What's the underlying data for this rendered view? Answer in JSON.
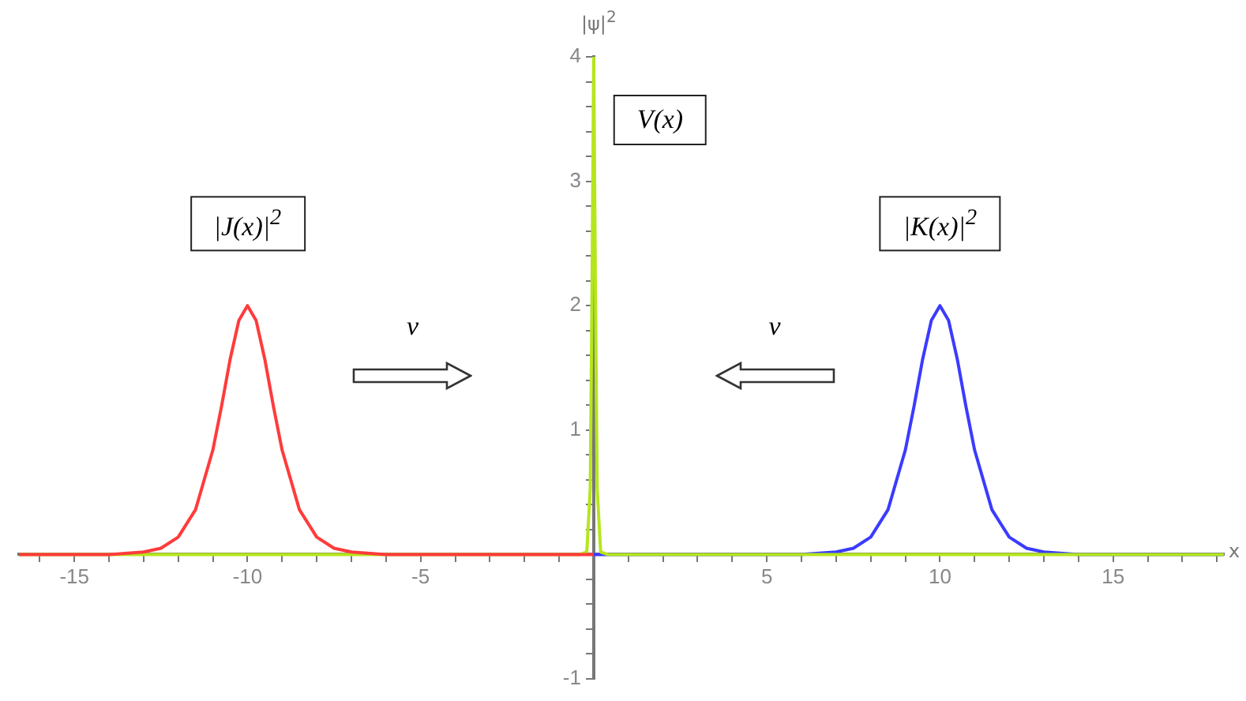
{
  "chart_data": {
    "type": "line",
    "xlabel": "x",
    "ylabel": "|ψ|$^{2}$",
    "xlim": [
      -16.6,
      18.2
    ],
    "ylim": [
      -1,
      4
    ],
    "xticks": [
      {
        "value": -16,
        "label": null
      },
      -15,
      {
        "value": -14,
        "label": null
      },
      {
        "value": -13,
        "label": null
      },
      {
        "value": -12,
        "label": null
      },
      {
        "value": -11,
        "label": null
      },
      -10,
      {
        "value": -9,
        "label": null
      },
      {
        "value": -8,
        "label": null
      },
      {
        "value": -7,
        "label": null
      },
      {
        "value": -6,
        "label": null
      },
      -5,
      {
        "value": -4,
        "label": null
      },
      {
        "value": -3,
        "label": null
      },
      {
        "value": -2,
        "label": null
      },
      {
        "value": -1,
        "label": null
      },
      {
        "value": 0,
        "label": null
      },
      {
        "value": 1,
        "label": null
      },
      {
        "value": 2,
        "label": null
      },
      {
        "value": 3,
        "label": null
      },
      {
        "value": 4,
        "label": null
      },
      5,
      {
        "value": 6,
        "label": null
      },
      {
        "value": 7,
        "label": null
      },
      {
        "value": 8,
        "label": null
      },
      {
        "value": 9,
        "label": null
      },
      10,
      {
        "value": 11,
        "label": null
      },
      {
        "value": 12,
        "label": null
      },
      {
        "value": 13,
        "label": null
      },
      {
        "value": 14,
        "label": null
      },
      15,
      {
        "value": 16,
        "label": null
      },
      {
        "value": 17,
        "label": null
      },
      {
        "value": 18,
        "label": null
      }
    ],
    "yticks": [
      -1,
      {
        "value": -0.8,
        "label": null
      },
      {
        "value": -0.6,
        "label": null
      },
      {
        "value": -0.4,
        "label": null
      },
      {
        "value": -0.2,
        "label": null
      },
      {
        "value": 0,
        "label": null
      },
      {
        "value": 0.2,
        "label": null
      },
      {
        "value": 0.4,
        "label": null
      },
      {
        "value": 0.6,
        "label": null
      },
      {
        "value": 0.8,
        "label": null
      },
      1,
      {
        "value": 1.2,
        "label": null
      },
      {
        "value": 1.4,
        "label": null
      },
      {
        "value": 1.6,
        "label": null
      },
      {
        "value": 1.8,
        "label": null
      },
      2,
      {
        "value": 2.2,
        "label": null
      },
      {
        "value": 2.4,
        "label": null
      },
      {
        "value": 2.6,
        "label": null
      },
      {
        "value": 2.8,
        "label": null
      },
      3,
      {
        "value": 3.2,
        "label": null
      },
      {
        "value": 3.4,
        "label": null
      },
      {
        "value": 3.6,
        "label": null
      },
      {
        "value": 3.8,
        "label": null
      },
      4
    ],
    "grid": false,
    "legend": false,
    "marker": "none",
    "line_style": "solid",
    "series": [
      {
        "color": "#ff3b3b",
        "x": [
          -16.6,
          -14,
          -13,
          -12.5,
          -12,
          -11.5,
          -11,
          -10.75,
          -10.5,
          -10.25,
          -10,
          -9.75,
          -9.5,
          -9.25,
          -9,
          -8.5,
          -8,
          -7.5,
          -7,
          -6,
          0
        ],
        "values": [
          0,
          0,
          0.02,
          0.05,
          0.14,
          0.36,
          0.84,
          1.19,
          1.57,
          1.88,
          2,
          1.88,
          1.57,
          1.19,
          0.84,
          0.36,
          0.14,
          0.05,
          0.02,
          0,
          0
        ]
      },
      {
        "color": "#b5e61d",
        "x": [
          -16.6,
          -0.4,
          -0.2,
          -0.1,
          -0.05,
          0,
          0.05,
          0.1,
          0.2,
          0.4,
          18.2
        ],
        "values": [
          0,
          0,
          0.02,
          0.53,
          2.1,
          4,
          2.1,
          0.53,
          0.02,
          0,
          0
        ]
      },
      {
        "color": "#3b3bff",
        "x": [
          0,
          6,
          7,
          7.5,
          8,
          8.5,
          9,
          9.25,
          9.5,
          9.75,
          10,
          10.25,
          10.5,
          10.75,
          11,
          11.5,
          12,
          12.5,
          13,
          14,
          18.2
        ],
        "values": [
          0,
          0,
          0.02,
          0.05,
          0.14,
          0.36,
          0.84,
          1.19,
          1.57,
          1.88,
          2,
          1.88,
          1.57,
          1.19,
          0.84,
          0.36,
          0.14,
          0.05,
          0.02,
          0,
          0
        ]
      }
    ],
    "annotations": [
      "|J(x)|$^{2}$",
      "V(x)",
      "|K(x)|$^{2}$",
      "v",
      "v"
    ]
  }
}
